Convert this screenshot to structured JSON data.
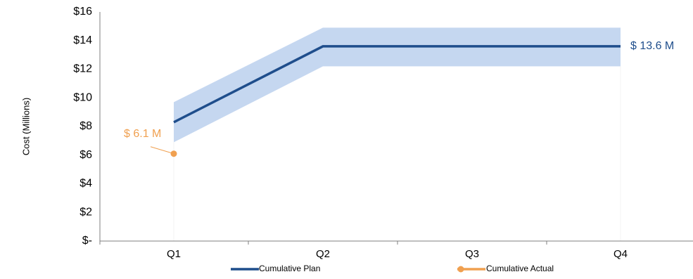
{
  "chart_data": {
    "type": "line",
    "title": "",
    "xlabel": "",
    "ylabel": "Cost (Millions)",
    "categories": [
      "Q1",
      "Q2",
      "Q3",
      "Q4"
    ],
    "ylim": [
      0,
      16
    ],
    "yticks": [
      0,
      2,
      4,
      6,
      8,
      10,
      12,
      14,
      16
    ],
    "ytick_labels": [
      "$-",
      "$2",
      "$4",
      "$6",
      "$8",
      "$10",
      "$12",
      "$14",
      "$16"
    ],
    "grid": false,
    "legend_position": "bottom",
    "series": [
      {
        "name": "Cumulative Plan",
        "color": "#1f4e8c",
        "values": [
          8.3,
          13.6,
          13.6,
          13.6
        ],
        "band": {
          "color": "#c5d7f0",
          "lower": [
            6.9,
            12.2,
            12.2,
            12.2
          ],
          "upper": [
            9.7,
            14.9,
            14.9,
            14.9
          ]
        }
      },
      {
        "name": "Cumulative Actual",
        "color": "#f0a050",
        "values": [
          6.1,
          null,
          null,
          null
        ]
      }
    ],
    "annotations": [
      {
        "series": "Cumulative Plan",
        "index": 3,
        "text": "$ 13.6 M"
      },
      {
        "series": "Cumulative Actual",
        "index": 0,
        "text": "$ 6.1 M"
      }
    ]
  }
}
